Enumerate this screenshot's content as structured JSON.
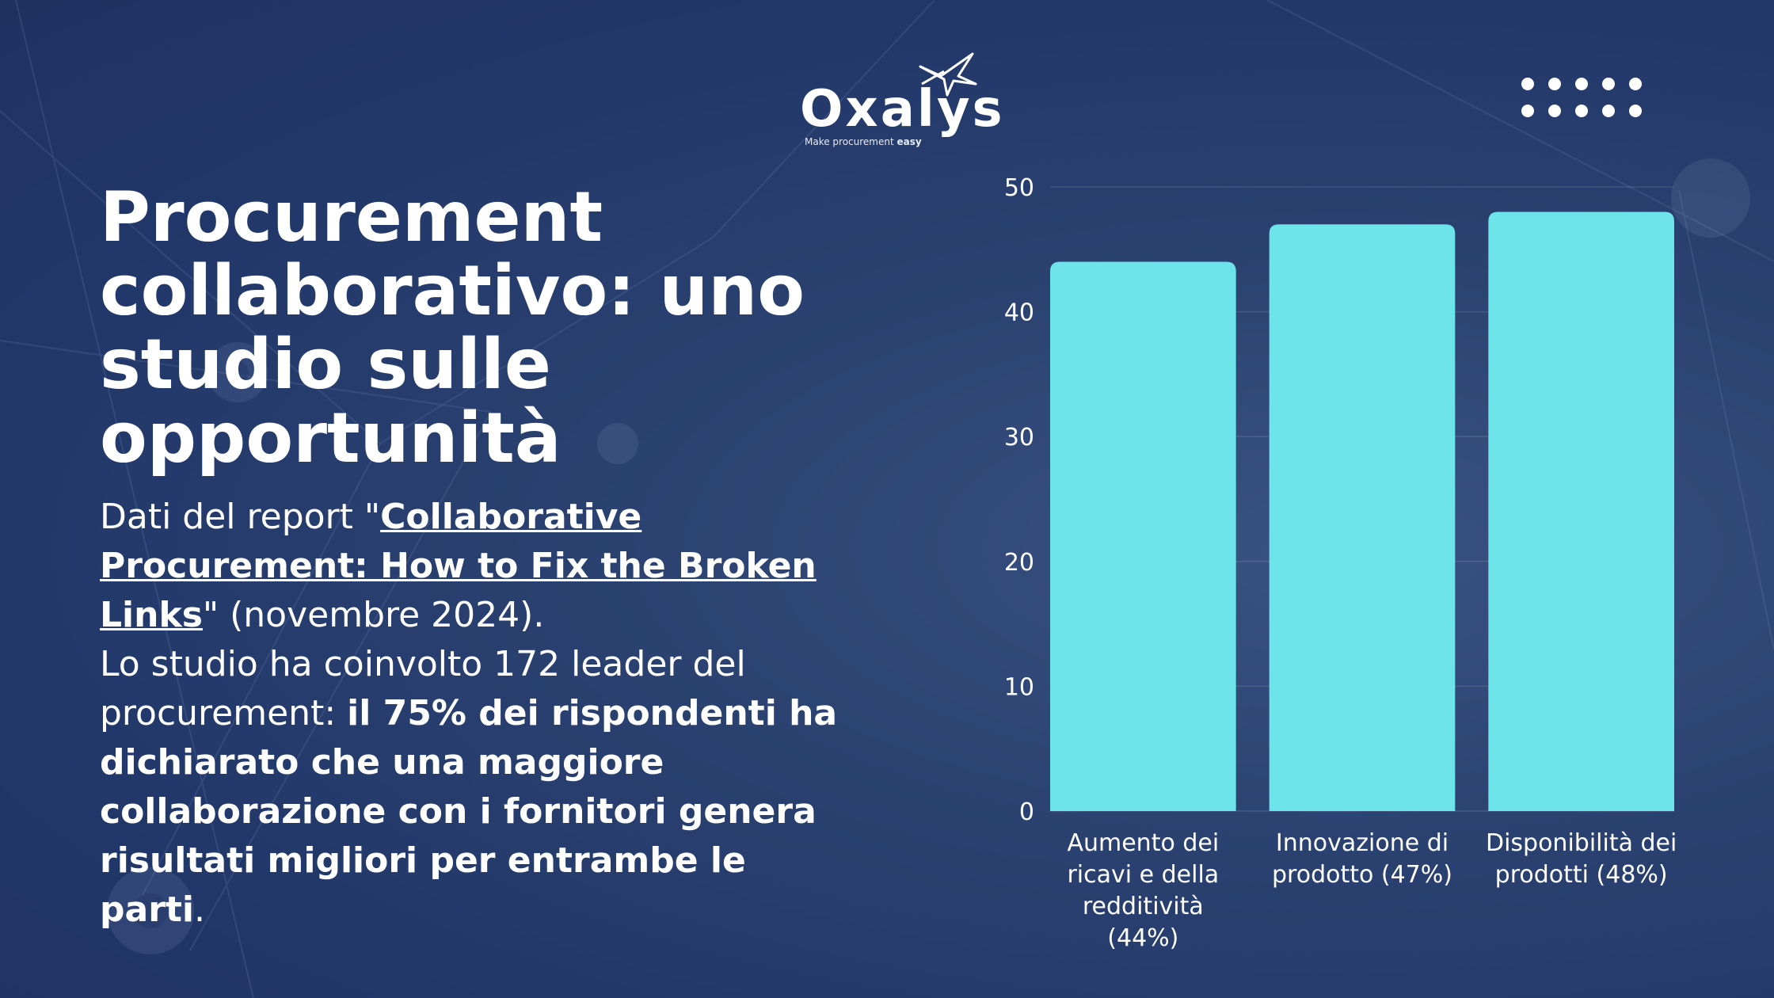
{
  "brand": {
    "name": "Oxalys",
    "tagline_prefix": "Make procurement",
    "tagline_emphasis": "easy"
  },
  "title": "Procurement collaborativo: uno studio sulle opportunità",
  "body": {
    "intro_prefix": "Dati del report \"",
    "report_link": "Collaborative Procurement: How to Fix the Broken Links",
    "intro_suffix": "\" (novembre 2024).",
    "study_prefix": "Lo studio ha coinvolto 172 leader del procurement: ",
    "study_highlight": "il 75% dei rispondenti ha dichiarato che una maggiore collaborazione con i fornitori genera risultati migliori per entrambe le parti",
    "study_suffix": "."
  },
  "colors": {
    "background": "#22386a",
    "bar": "#6de3ea",
    "text": "#ffffff"
  },
  "chart_data": {
    "type": "bar",
    "categories": [
      "Aumento dei ricavi e della redditività (44%)",
      "Innovazione di prodotto (47%)",
      "Disponibilità dei prodotti (48%)"
    ],
    "category_lines": [
      [
        "Aumento dei",
        "ricavi e della",
        "redditività",
        "(44%)"
      ],
      [
        "Innovazione di",
        "prodotto (47%)"
      ],
      [
        "Disponibilità dei",
        "prodotti (48%)"
      ]
    ],
    "values": [
      44,
      47,
      48
    ],
    "ylim": [
      0,
      50
    ],
    "yticks": [
      "0",
      "10",
      "20",
      "30",
      "40",
      "50"
    ],
    "grid": true,
    "legend": "none",
    "title": "",
    "xlabel": "",
    "ylabel": ""
  }
}
